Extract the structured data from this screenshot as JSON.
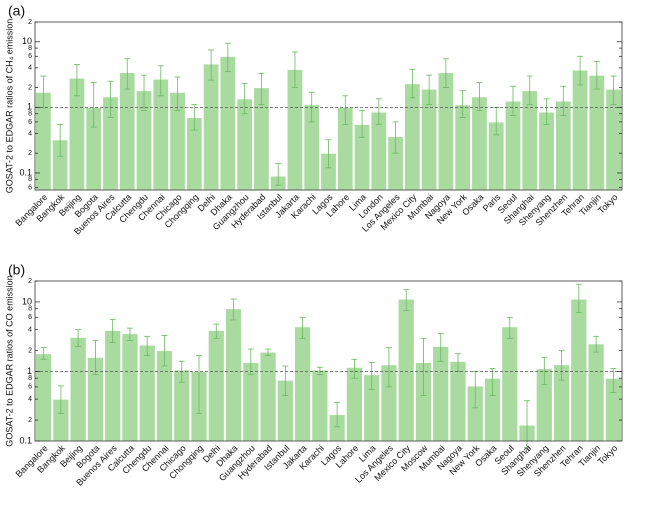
{
  "chart_data": [
    {
      "type": "bar",
      "title": "(a)",
      "y_label": "GOSAT-2 to EDGAR ratios of CH₄ emission",
      "log_y": true,
      "color": "#a9dba0",
      "error_color": "#6cb862",
      "categories": [
        "Bangalore",
        "Bangkok",
        "Beijing",
        "Bogota",
        "Buenos Aires",
        "Calcutta",
        "Chengdu",
        "Chennai",
        "Chicago",
        "Chongqing",
        "Delhi",
        "Dhaka",
        "Guangzhou",
        "Hyderabad",
        "Istanbul",
        "Jakarta",
        "Karachi",
        "Lagos",
        "Lahore",
        "Lima",
        "London",
        "Los Angeles",
        "Mexico City",
        "Mumbai",
        "Nagoya",
        "New York",
        "Osaka",
        "Paris",
        "Seoul",
        "Shanghai",
        "Shenyang",
        "Shenzhen",
        "Tehran",
        "Tianjin",
        "Tokyo"
      ],
      "values": [
        1.7,
        0.32,
        2.8,
        1.0,
        1.45,
        3.4,
        1.8,
        2.7,
        1.7,
        0.7,
        4.6,
        6.0,
        1.35,
        2.0,
        0.09,
        3.8,
        1.1,
        0.2,
        1.0,
        0.55,
        0.85,
        0.36,
        2.3,
        1.9,
        3.4,
        1.1,
        1.45,
        0.6,
        1.25,
        1.8,
        0.85,
        1.25,
        3.7,
        3.1,
        1.9
      ],
      "upper": [
        3.0,
        0.55,
        4.5,
        2.4,
        2.5,
        5.5,
        3.1,
        4.3,
        2.9,
        1.1,
        7.5,
        9.5,
        2.3,
        3.3,
        0.14,
        7.0,
        1.7,
        0.32,
        1.5,
        0.9,
        1.35,
        0.6,
        3.8,
        3.1,
        5.5,
        1.8,
        2.4,
        1.0,
        2.1,
        3.0,
        1.35,
        2.1,
        6.0,
        5.0,
        3.0
      ],
      "lower": [
        1.0,
        0.18,
        1.5,
        0.5,
        0.7,
        1.9,
        0.9,
        1.5,
        0.9,
        0.45,
        2.6,
        3.5,
        0.8,
        1.1,
        0.065,
        2.0,
        0.6,
        0.12,
        0.55,
        0.35,
        0.55,
        0.2,
        1.4,
        1.1,
        2.0,
        0.7,
        0.9,
        0.38,
        0.75,
        1.1,
        0.55,
        0.75,
        2.2,
        1.9,
        1.1
      ],
      "ylim": [
        0.055,
        20
      ],
      "refline": 1,
      "yticks": [
        {
          "value": 0.06,
          "label": "6"
        },
        {
          "value": 0.08,
          "label": "8"
        },
        0.1,
        {
          "value": 0.2,
          "label": "2"
        },
        {
          "value": 0.4,
          "label": "4"
        },
        {
          "value": 0.6,
          "label": "6"
        },
        {
          "value": 0.8,
          "label": "8"
        },
        1,
        2,
        4,
        6,
        8,
        10,
        {
          "value": 20,
          "label": "2"
        }
      ]
    },
    {
      "type": "bar",
      "title": "(b)",
      "y_label": "GOSAT-2 to EDGAR ratios of CO emission",
      "log_y": true,
      "color": "#a9dba0",
      "error_color": "#6cb862",
      "categories": [
        "Bangalore",
        "Bangkok",
        "Beijing",
        "Bogota",
        "Buenos Aires",
        "Calcutta",
        "Chengdu",
        "Chennai",
        "Chicago",
        "Chongqing",
        "Delhi",
        "Dhaka",
        "Guangzhou",
        "Hyderabad",
        "Istanbul",
        "Jakarta",
        "Karachi",
        "Lagos",
        "Lahore",
        "Lima",
        "Los Angeles",
        "Mexico City",
        "Moscow",
        "Mumbai",
        "Nagoya",
        "New York",
        "Osaka",
        "Seoul",
        "Shanghai",
        "Shenyang",
        "Shenzhen",
        "Tehran",
        "Tianjin",
        "Tokyo"
      ],
      "values": [
        1.8,
        0.4,
        3.1,
        1.6,
        3.9,
        3.5,
        2.4,
        2.0,
        1.05,
        1.0,
        3.9,
        8.0,
        1.35,
        1.9,
        0.75,
        4.4,
        1.05,
        0.24,
        1.15,
        0.9,
        1.25,
        11,
        1.35,
        2.3,
        1.4,
        0.62,
        0.8,
        4.4,
        0.17,
        1.1,
        1.25,
        11,
        2.5,
        0.8
      ],
      "upper": [
        2.2,
        0.62,
        4.0,
        2.8,
        5.6,
        4.2,
        3.2,
        3.3,
        1.4,
        1.7,
        4.8,
        11,
        2.1,
        2.1,
        1.2,
        6.0,
        1.15,
        0.36,
        1.5,
        1.35,
        2.2,
        15,
        3.0,
        3.5,
        1.8,
        1.0,
        1.1,
        6.0,
        0.38,
        1.6,
        2.0,
        18,
        3.2,
        1.1
      ],
      "lower": [
        1.5,
        0.25,
        2.3,
        0.9,
        2.6,
        2.8,
        1.7,
        1.2,
        0.7,
        0.25,
        3.0,
        5.5,
        0.9,
        1.7,
        0.45,
        3.0,
        0.9,
        0.16,
        0.8,
        0.55,
        0.6,
        7.5,
        0.45,
        1.4,
        1.0,
        0.3,
        0.45,
        3.0,
        0.08,
        0.65,
        0.75,
        7.0,
        1.9,
        0.5
      ],
      "ylim": [
        0.1,
        20
      ],
      "refline": 1,
      "yticks": [
        0.1,
        {
          "value": 0.2,
          "label": "2"
        },
        {
          "value": 0.4,
          "label": "4"
        },
        {
          "value": 0.6,
          "label": "6"
        },
        {
          "value": 0.8,
          "label": "8"
        },
        1,
        2,
        4,
        6,
        8,
        10,
        {
          "value": 20,
          "label": "2"
        }
      ]
    }
  ]
}
